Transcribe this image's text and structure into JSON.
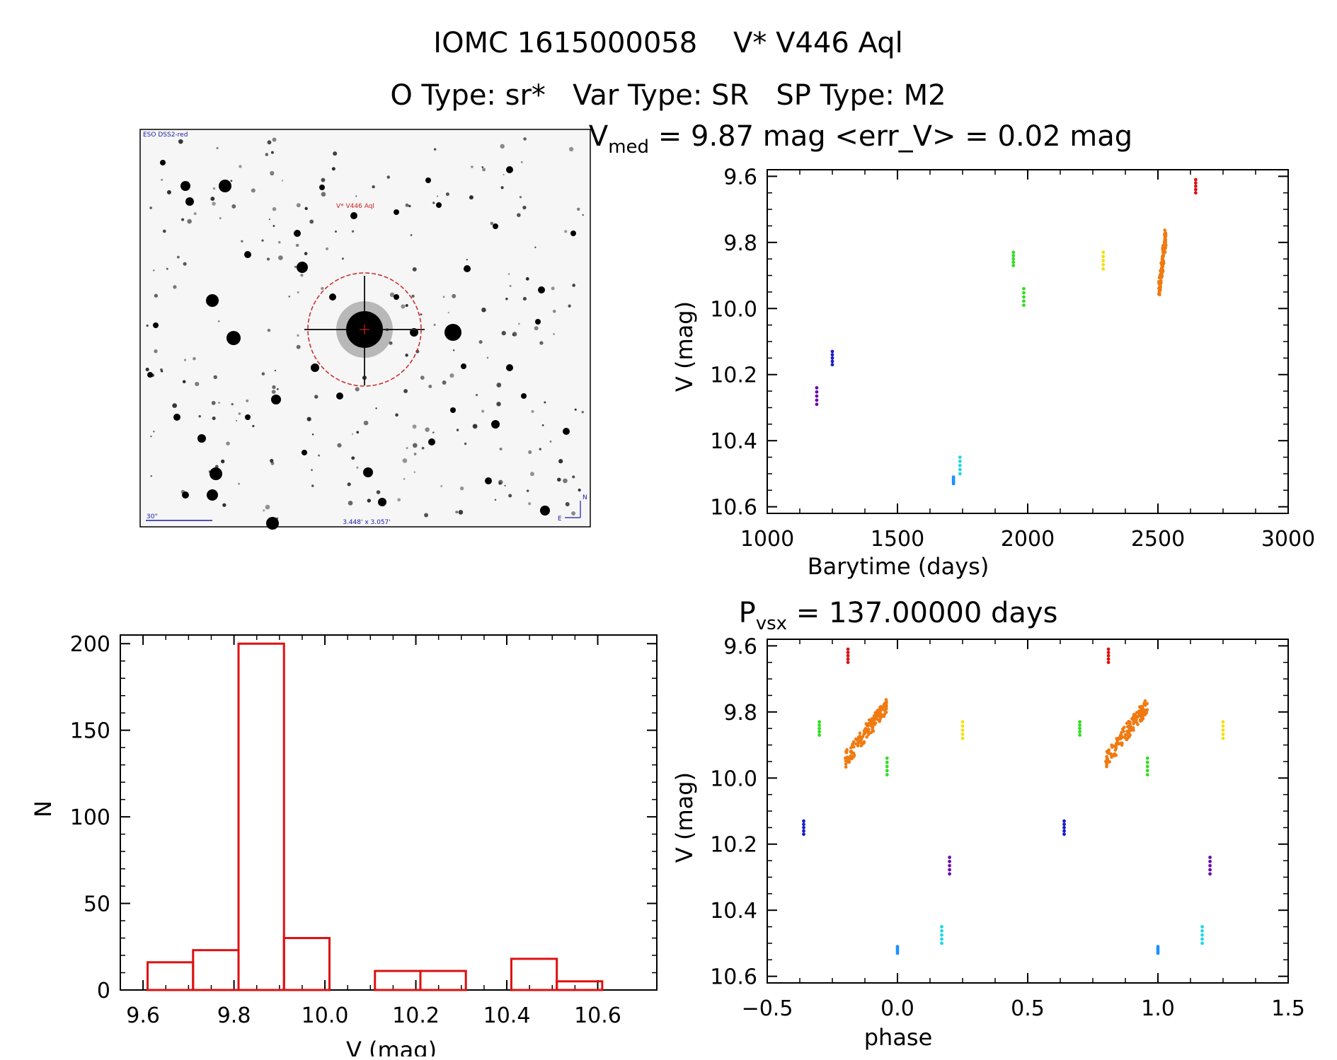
{
  "header": {
    "title": "IOMC 1615000058    V* V446 Aql",
    "subtitle": "O Type: sr*   Var Type: SR   SP Type: M2"
  },
  "finder": {
    "survey_label": "ESO DSS2-red",
    "target_label": "V* V446 Aql",
    "scale_label": "30\"",
    "fov_label": "3.448' x 3.057'",
    "compass_n": "N",
    "compass_e": "E"
  },
  "colors": {
    "purple": "#6a0dad",
    "blue": "#1a1acc",
    "azure": "#1e90ff",
    "cyan": "#20d8e0",
    "green": "#33dd22",
    "yellow": "#f0e010",
    "orange": "#f07a10",
    "red": "#dd1111",
    "histogram": "#dd1111"
  },
  "chart_data": [
    {
      "type": "scatter",
      "title": "V_med = 9.87 mag <err_V> = 0.02 mag",
      "title_parts": {
        "v": "V",
        "sub": "med",
        "rest": " = 9.87 mag <err_V> = 0.02 mag"
      },
      "xlabel": "Barytime (days)",
      "ylabel": "V (mag)",
      "xlim": [
        1000,
        3000
      ],
      "ylim": [
        10.62,
        9.58
      ],
      "xticks": [
        1000,
        1500,
        2000,
        2500,
        3000
      ],
      "yticks": [
        9.6,
        9.8,
        10.0,
        10.2,
        10.4,
        10.6
      ],
      "series": [
        {
          "color": "purple",
          "x": 1190,
          "y": [
            10.24,
            10.29
          ]
        },
        {
          "color": "blue",
          "x": 1250,
          "y": [
            10.13,
            10.17
          ]
        },
        {
          "color": "azure",
          "x": 1715,
          "y": [
            10.51,
            10.53
          ]
        },
        {
          "color": "cyan",
          "x": 1740,
          "y": [
            10.45,
            10.5
          ]
        },
        {
          "color": "green",
          "x": 1945,
          "y": [
            9.83,
            9.87
          ]
        },
        {
          "color": "green",
          "x": 1985,
          "y": [
            9.94,
            9.99
          ]
        },
        {
          "color": "yellow",
          "x": 2290,
          "y": [
            9.83,
            9.88
          ]
        },
        {
          "color": "orange",
          "x": [
            2505,
            2530
          ],
          "y": [
            9.76,
            9.97
          ]
        },
        {
          "color": "red",
          "x": 2645,
          "y": [
            9.61,
            9.65
          ]
        }
      ]
    },
    {
      "type": "bar",
      "title": "",
      "xlabel": "V (mag)",
      "ylabel": "N",
      "xlim": [
        9.55,
        10.73
      ],
      "ylim": [
        0,
        205
      ],
      "xticks": [
        9.6,
        9.8,
        10.0,
        10.2,
        10.4,
        10.6
      ],
      "yticks": [
        0,
        50,
        100,
        150,
        200
      ],
      "bin_width": 0.1,
      "bin_starts": [
        9.61,
        9.71,
        9.81,
        9.91,
        10.01,
        10.11,
        10.21,
        10.31,
        10.41,
        10.51
      ],
      "values": [
        16,
        23,
        200,
        30,
        0,
        11,
        11,
        0,
        18,
        5
      ]
    },
    {
      "type": "scatter",
      "title": "P_vsx = 137.00000 days",
      "title_parts": {
        "p": "P",
        "sub": "vsx",
        "rest": " = 137.00000 days"
      },
      "xlabel": "phase",
      "ylabel": "V (mag)",
      "xlim": [
        -0.5,
        1.5
      ],
      "ylim": [
        10.62,
        9.58
      ],
      "xticks": [
        -0.5,
        0.0,
        0.5,
        1.0,
        1.5
      ],
      "yticks": [
        9.6,
        9.8,
        10.0,
        10.2,
        10.4,
        10.6
      ],
      "series": [
        {
          "color": "blue",
          "x": -0.36,
          "y": [
            10.13,
            10.17
          ]
        },
        {
          "color": "green",
          "x": -0.3,
          "y": [
            9.83,
            9.87
          ]
        },
        {
          "color": "red",
          "x": -0.19,
          "y": [
            9.61,
            9.65
          ]
        },
        {
          "color": "orange",
          "x": [
            -0.2,
            -0.04
          ],
          "y": [
            9.76,
            9.97
          ]
        },
        {
          "color": "green",
          "x": -0.04,
          "y": [
            9.94,
            9.99
          ]
        },
        {
          "color": "azure",
          "x": 0.0,
          "y": [
            10.51,
            10.53
          ]
        },
        {
          "color": "cyan",
          "x": 0.17,
          "y": [
            10.45,
            10.5
          ]
        },
        {
          "color": "purple",
          "x": 0.2,
          "y": [
            10.24,
            10.29
          ]
        },
        {
          "color": "yellow",
          "x": 0.25,
          "y": [
            9.83,
            9.88
          ]
        },
        {
          "color": "blue",
          "x": 0.64,
          "y": [
            10.13,
            10.17
          ]
        },
        {
          "color": "green",
          "x": 0.7,
          "y": [
            9.83,
            9.87
          ]
        },
        {
          "color": "red",
          "x": 0.81,
          "y": [
            9.61,
            9.65
          ]
        },
        {
          "color": "orange",
          "x": [
            0.8,
            0.96
          ],
          "y": [
            9.76,
            9.97
          ]
        },
        {
          "color": "green",
          "x": 0.96,
          "y": [
            9.94,
            9.99
          ]
        },
        {
          "color": "azure",
          "x": 1.0,
          "y": [
            10.51,
            10.53
          ]
        },
        {
          "color": "cyan",
          "x": 1.17,
          "y": [
            10.45,
            10.5
          ]
        },
        {
          "color": "purple",
          "x": 1.2,
          "y": [
            10.24,
            10.29
          ]
        },
        {
          "color": "yellow",
          "x": 1.25,
          "y": [
            9.83,
            9.88
          ]
        }
      ]
    }
  ]
}
